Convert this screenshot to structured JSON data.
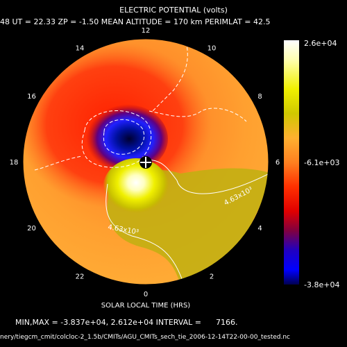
{
  "chart_data": {
    "type": "heatmap",
    "title": "ELECTRIC POTENTIAL (volts)",
    "header_line": "48  UT = 22.33  ZP =  -1.50  MEAN ALTITUDE = 170 km  PERIMLAT =  42.5",
    "xlabel": "SOLAR LOCAL TIME (HRS)",
    "hour_labels": [
      {
        "hour": 0,
        "label": "0"
      },
      {
        "hour": 2,
        "label": "2"
      },
      {
        "hour": 4,
        "label": "4"
      },
      {
        "hour": 6,
        "label": "6"
      },
      {
        "hour": 8,
        "label": "8"
      },
      {
        "hour": 10,
        "label": "10"
      },
      {
        "hour": 12,
        "label": "12"
      },
      {
        "hour": 14,
        "label": "14"
      },
      {
        "hour": 16,
        "label": "16"
      },
      {
        "hour": 18,
        "label": "18"
      },
      {
        "hour": 20,
        "label": "20"
      },
      {
        "hour": 22,
        "label": "22"
      }
    ],
    "colorbar": {
      "max_label": "2.6e+04",
      "mid_label": "-6.1e+03",
      "min_label": "-3.8e+04",
      "colors": [
        "#ffffff",
        "#ffffb0",
        "#f0f000",
        "#c8c800",
        "#ffb030",
        "#ff8020",
        "#ff3000",
        "#e00000",
        "#600030",
        "#0000d0",
        "#0000ff",
        "#000060"
      ]
    },
    "contour_labels": [
      "4.63x10³",
      "4.63x10³"
    ],
    "stats_line": "MIN,MAX = -3.837e+04, 2.612e+04 INTERVAL =      7166.",
    "file_path": "nery/tiegcm_cmit/colcloc-2_1.5b/CMITs/AGU_CMITs_sech_tie_2006-12-14T22-00-00_tested.nc"
  }
}
